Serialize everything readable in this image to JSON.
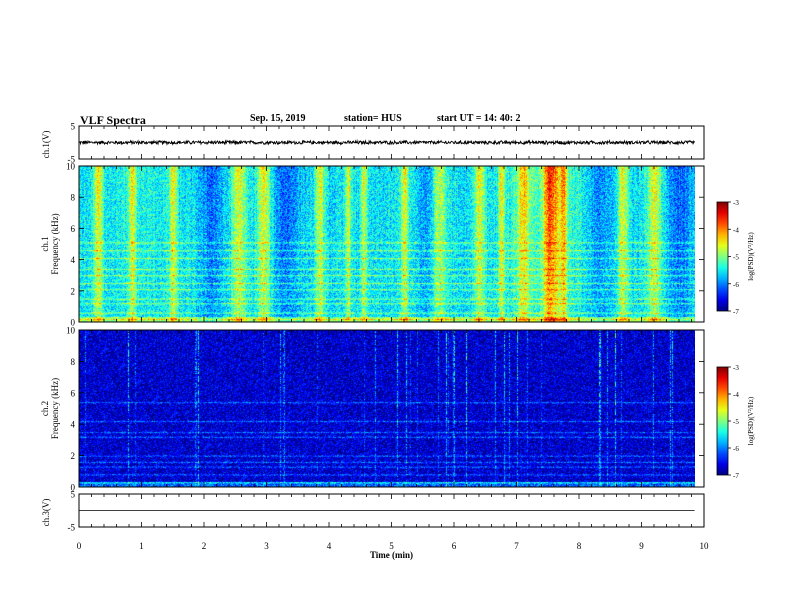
{
  "header": {
    "title": "VLF Spectra",
    "date": "Sep. 15, 2019",
    "station": "station= HUS",
    "start_ut": "start  UT =   14: 40: 2"
  },
  "chart_data": [
    {
      "id": "ch1_waveform",
      "type": "line",
      "ylabel": "ch.1(V)",
      "ylim": [
        -5,
        5
      ],
      "yticks": [
        "5",
        "-5"
      ],
      "xlim": [
        0,
        10
      ],
      "data_end_min": 9.85,
      "baseline_v": 0,
      "amplitude_v": 0.6,
      "color": "#000000"
    },
    {
      "id": "ch1_spectrogram",
      "type": "heatmap",
      "ylabel_top": "ch.1",
      "ylabel": "Frequency (kHz)",
      "ylim": [
        0,
        10
      ],
      "yticks": [
        "0",
        "2",
        "4",
        "6",
        "8",
        "10"
      ],
      "xlim": [
        0,
        10
      ],
      "data_end_min": 9.85,
      "colorbar": {
        "label": "log(PSD)(V²/Hz)",
        "range": [
          -7,
          -3
        ],
        "ticks": [
          "-3",
          "-4",
          "-5",
          "-6",
          "-7"
        ]
      },
      "bright_bursts_min": [
        0.3,
        0.85,
        1.5,
        2.55,
        2.95,
        3.85,
        4.3,
        4.55,
        5.2,
        5.75,
        6.4,
        6.75,
        7.1,
        7.5,
        7.6,
        7.75,
        8.7,
        9.2
      ],
      "horizontal_bands_khz": [
        0.2,
        0.6,
        1.2,
        1.5,
        2.1,
        2.5,
        3.0,
        3.4,
        4.1,
        4.6,
        5.1
      ],
      "background_level": -5.6
    },
    {
      "id": "ch2_spectrogram",
      "type": "heatmap",
      "ylabel_top": "ch.2",
      "ylabel": "Frequency (kHz)",
      "ylim": [
        0,
        10
      ],
      "yticks": [
        "0",
        "2",
        "4",
        "6",
        "8",
        "10"
      ],
      "xlim": [
        0,
        10
      ],
      "data_end_min": 9.85,
      "colorbar": {
        "label": "log(PSD)(V²/Hz)",
        "range": [
          -7,
          -3
        ],
        "ticks": [
          "-3",
          "-4",
          "-5",
          "-6",
          "-7"
        ]
      },
      "horizontal_bands_khz": [
        0.3,
        0.8,
        1.3,
        1.6,
        2.0,
        3.2,
        3.5,
        4.2,
        5.4
      ],
      "background_level": -6.7
    },
    {
      "id": "ch3_waveform",
      "type": "line",
      "ylabel": "ch.3(V)",
      "ylim": [
        -5,
        5
      ],
      "yticks": [
        "5",
        "-5"
      ],
      "xlim": [
        0,
        10
      ],
      "data_end_min": 9.85,
      "baseline_v": 0,
      "amplitude_v": 0,
      "color": "#000000"
    }
  ],
  "x_axis": {
    "label": "Time  (min)",
    "ticks": [
      "0",
      "1",
      "2",
      "3",
      "4",
      "5",
      "6",
      "7",
      "8",
      "9",
      "10"
    ]
  }
}
